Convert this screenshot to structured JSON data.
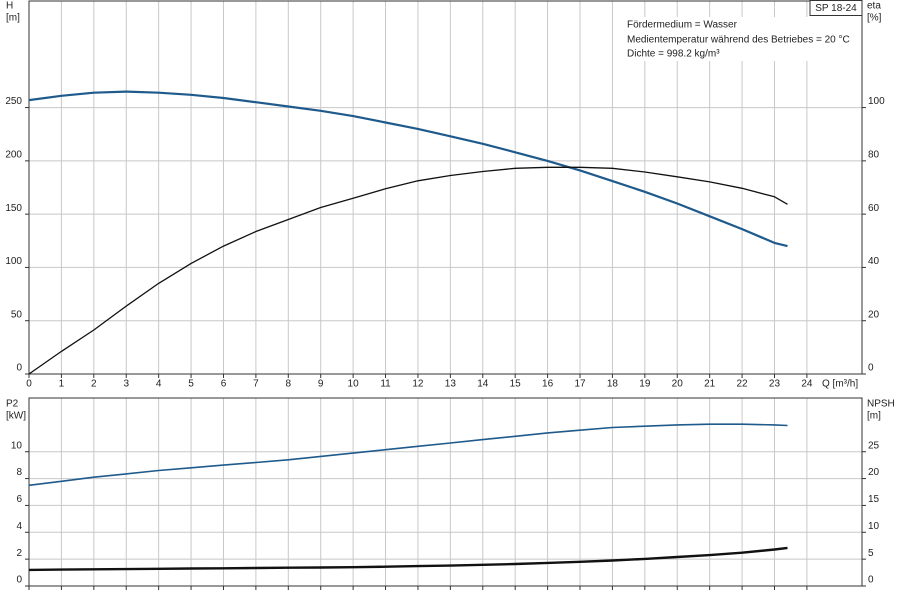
{
  "chart_data": [
    {
      "type": "line",
      "title": "SP 18-24",
      "annotations": [
        "Fördermedium = Wasser",
        "Medientemperatur während des Betriebes = 20 °C",
        "Dichte = 998.2 kg/m³"
      ],
      "xlabel": "Q [m³/h]",
      "ylabel": [
        "H",
        "[m]"
      ],
      "y2label": [
        "eta",
        "[%]"
      ],
      "x": [
        0,
        1,
        2,
        3,
        4,
        5,
        6,
        7,
        8,
        9,
        10,
        11,
        12,
        13,
        14,
        15,
        16,
        17,
        18,
        19,
        20,
        21,
        22,
        23,
        23.4
      ],
      "series": [
        {
          "name": "H",
          "color": "#1f5a8c",
          "axis": "y",
          "width": 2.2,
          "values": [
            257,
            261,
            264,
            265,
            264,
            262,
            259,
            255,
            251,
            247,
            242,
            236,
            230,
            223,
            216,
            208,
            200,
            191,
            181,
            171,
            160,
            148,
            136,
            123,
            120
          ]
        },
        {
          "name": "eta",
          "color": "#111111",
          "axis": "y2",
          "width": 1.3,
          "values": [
            0,
            8.5,
            16.5,
            25.5,
            34,
            41.5,
            48,
            53.5,
            58,
            62.5,
            66,
            69.5,
            72.5,
            74.5,
            76,
            77.2,
            77.6,
            77.6,
            77.2,
            75.8,
            74,
            72.1,
            69.7,
            66.5,
            63.7
          ]
        }
      ],
      "xlim": [
        0,
        25.7
      ],
      "xticks": [
        0,
        1,
        2,
        3,
        4,
        5,
        6,
        7,
        8,
        9,
        10,
        11,
        12,
        13,
        14,
        15,
        16,
        17,
        18,
        19,
        20,
        21,
        22,
        23,
        24
      ],
      "ylim": [
        0,
        350
      ],
      "yticks": [
        0,
        50,
        100,
        150,
        200,
        250
      ],
      "y2lim": [
        0,
        140
      ],
      "y2ticks": [
        0,
        20,
        40,
        60,
        80,
        100
      ],
      "grid": true
    },
    {
      "type": "line",
      "ylabel": [
        "P2",
        "[kW]"
      ],
      "y2label": [
        "NPSH",
        "[m]"
      ],
      "x": [
        0,
        1,
        2,
        3,
        4,
        5,
        6,
        7,
        8,
        9,
        10,
        11,
        12,
        13,
        14,
        15,
        16,
        17,
        18,
        19,
        20,
        21,
        22,
        23,
        23.4
      ],
      "series": [
        {
          "name": "P2",
          "color": "#1f5a8c",
          "axis": "y",
          "width": 1.6,
          "values": [
            7.5,
            7.8,
            8.1,
            8.35,
            8.6,
            8.8,
            9.0,
            9.2,
            9.4,
            9.65,
            9.9,
            10.15,
            10.4,
            10.65,
            10.9,
            11.15,
            11.4,
            11.6,
            11.8,
            11.9,
            12.0,
            12.05,
            12.05,
            12.0,
            11.95
          ]
        },
        {
          "name": "NPSH",
          "color": "#111111",
          "axis": "y2",
          "width": 2.4,
          "values": [
            3.0,
            3.05,
            3.1,
            3.15,
            3.2,
            3.25,
            3.3,
            3.35,
            3.4,
            3.45,
            3.5,
            3.6,
            3.7,
            3.8,
            3.95,
            4.1,
            4.3,
            4.5,
            4.75,
            5.05,
            5.4,
            5.75,
            6.2,
            6.8,
            7.1
          ]
        }
      ],
      "xlim": [
        0,
        25.7
      ],
      "xticks": [
        0,
        1,
        2,
        3,
        4,
        5,
        6,
        7,
        8,
        9,
        10,
        11,
        12,
        13,
        14,
        15,
        16,
        17,
        18,
        19,
        20,
        21,
        22,
        23,
        24
      ],
      "ylim": [
        0,
        14
      ],
      "yticks": [
        0,
        2,
        4,
        6,
        8,
        10
      ],
      "y2lim": [
        0,
        35
      ],
      "y2ticks": [
        0,
        5,
        10,
        15,
        20,
        25
      ],
      "grid": true
    }
  ]
}
